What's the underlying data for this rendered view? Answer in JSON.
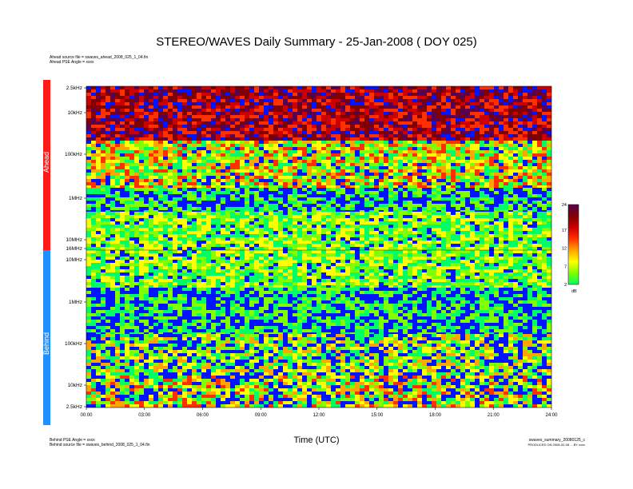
{
  "title": "STEREO/WAVES Daily Summary - 25-Jan-2008 ( DOY 025)",
  "header_lines": [
    "Ahead source file = swaves_ahead_2008_025_1_04.fin",
    "Ahead PSE Angle = xxxx"
  ],
  "footer_left": [
    "Behind PSE Angle = xxxx",
    "Behind source file = swaves_behind_2008_025_1_04.fin"
  ],
  "footer_right": [
    "swaves_summary_20080125_c",
    "PRODUCED ON 2008-02-08 ... BY xxxx"
  ],
  "xlabel": "Time (UTC)",
  "colors": {
    "ahead": "#ff1a1a",
    "behind": "#1e90ff"
  },
  "chart_data": {
    "type": "heatmap",
    "panels": [
      {
        "name": "Ahead",
        "y_ticks": [
          "2.5kHz",
          "10kHz",
          "100kHz",
          "1MHz",
          "10MHz",
          "16MHz"
        ],
        "y_scale": "log",
        "y_axis": "inverted-frequency"
      },
      {
        "name": "Behind",
        "y_ticks": [
          "10MHz",
          "1MHz",
          "100kHz",
          "10kHz",
          "2.5kHz"
        ],
        "y_scale": "log"
      }
    ],
    "x_ticks": [
      "00:00",
      "03:00",
      "06:00",
      "09:00",
      "12:00",
      "15:00",
      "18:00",
      "21:00",
      "24:00"
    ],
    "xlim": [
      "00:00",
      "24:00"
    ],
    "colorbar": {
      "ticks": [
        "24",
        "17",
        "12",
        "7",
        "2"
      ],
      "unit": "dB",
      "range": [
        2,
        24
      ]
    }
  }
}
